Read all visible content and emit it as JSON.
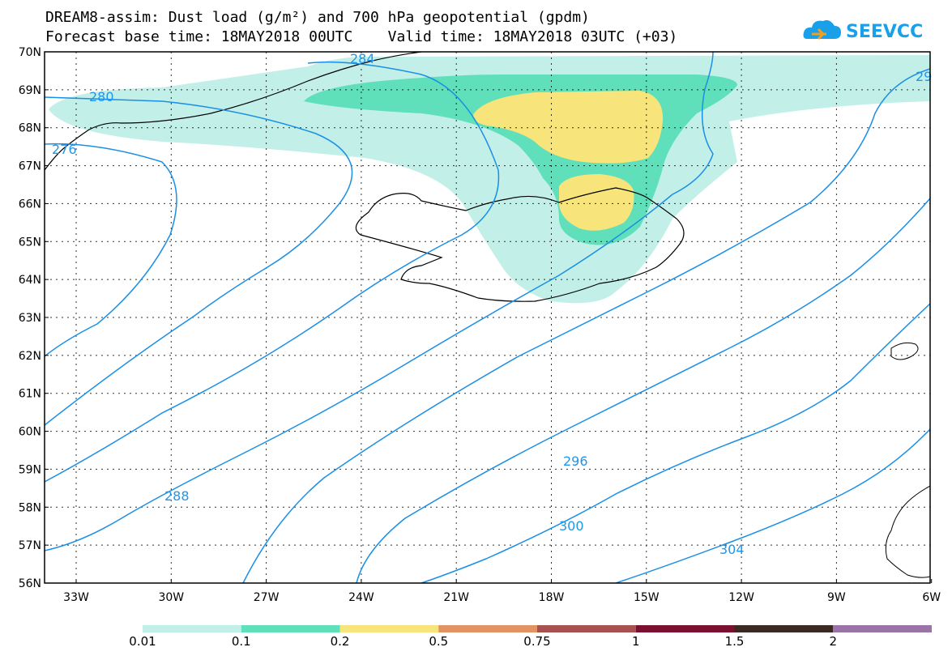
{
  "header": {
    "title_line1": "DREAM8-assim: Dust load (g/m²) and 700 hPa geopotential (gpdm)",
    "title_line2": "Forecast base time: 18MAY2018 00UTC    Valid time: 18MAY2018 03UTC (+03)",
    "logo_text": "SEEVCCC"
  },
  "axes": {
    "lat_labels": [
      "70N",
      "69N",
      "68N",
      "67N",
      "66N",
      "65N",
      "64N",
      "63N",
      "62N",
      "61N",
      "60N",
      "59N",
      "58N",
      "57N",
      "56N"
    ],
    "lon_labels": [
      "33W",
      "30W",
      "27W",
      "24W",
      "21W",
      "18W",
      "15W",
      "12W",
      "9W",
      "6W"
    ]
  },
  "contours": {
    "labels": [
      "280",
      "284",
      "276",
      "288",
      "296",
      "300",
      "304",
      "29"
    ]
  },
  "legend": {
    "colors": [
      "#c2f0e8",
      "#5fe0bb",
      "#f7e47a",
      "#e29263",
      "#a7524f",
      "#7c1030",
      "#3c2a22",
      "#9c73a6"
    ],
    "labels": [
      "0.01",
      "0.1",
      "0.2",
      "0.5",
      "0.75",
      "1",
      "1.5",
      "2"
    ]
  }
}
